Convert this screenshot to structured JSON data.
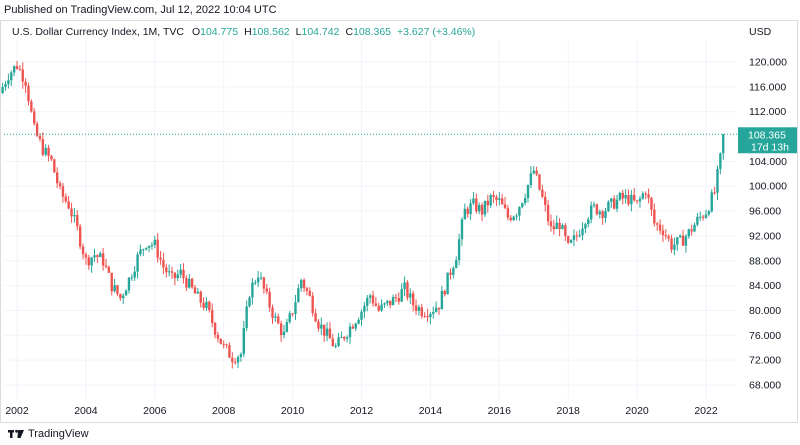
{
  "header": {
    "published": "Published on TradingView.com, Jul 12, 2022 10:04 UTC"
  },
  "legend": {
    "symbol": "U.S. Dollar Currency Index, 1M, TVC",
    "o_label": "O",
    "o_value": "104.775",
    "h_label": "H",
    "h_value": "108.562",
    "l_label": "L",
    "l_value": "104.742",
    "c_label": "C",
    "c_value": "108.365",
    "change": "+3.627 (+3.46%)"
  },
  "price_label": {
    "value": "108.365",
    "countdown": "17d 13h"
  },
  "currency": "USD",
  "footer": {
    "brand": "TradingView"
  },
  "colors": {
    "up": "#26a69a",
    "down": "#ef5350",
    "last_price": "#26a69a",
    "grid": "#f0f3fa"
  },
  "icons": {
    "logo": "tradingview-logo-icon"
  },
  "chart_data": {
    "type": "candlestick-monthly",
    "y_ticks": [
      "68.000",
      "72.000",
      "76.000",
      "80.000",
      "84.000",
      "88.000",
      "92.000",
      "96.000",
      "100.000",
      "104.000",
      "112.000",
      "116.000",
      "120.000"
    ],
    "x_ticks": [
      "2002",
      "2004",
      "2006",
      "2008",
      "2010",
      "2012",
      "2014",
      "2016",
      "2018",
      "2020",
      "2022"
    ],
    "ylim": [
      65.5,
      124
    ],
    "last_price": 108.365,
    "closes": [
      [
        2001.5,
        115.0
      ],
      [
        2001.75,
        118.0
      ],
      [
        2002.0,
        119.5
      ],
      [
        2002.25,
        117.0
      ],
      [
        2002.5,
        109.0
      ],
      [
        2002.75,
        106.0
      ],
      [
        2003.0,
        104.0
      ],
      [
        2003.25,
        99.0
      ],
      [
        2003.5,
        97.0
      ],
      [
        2003.75,
        93.0
      ],
      [
        2004.0,
        88.0
      ],
      [
        2004.25,
        89.0
      ],
      [
        2004.5,
        88.0
      ],
      [
        2004.75,
        84.0
      ],
      [
        2005.0,
        82.0
      ],
      [
        2005.25,
        85.0
      ],
      [
        2005.5,
        88.5
      ],
      [
        2005.75,
        91.0
      ],
      [
        2006.0,
        90.5
      ],
      [
        2006.25,
        87.0
      ],
      [
        2006.5,
        85.0
      ],
      [
        2006.75,
        86.0
      ],
      [
        2007.0,
        84.0
      ],
      [
        2007.25,
        82.0
      ],
      [
        2007.5,
        80.5
      ],
      [
        2007.75,
        77.0
      ],
      [
        2008.0,
        74.0
      ],
      [
        2008.25,
        72.5
      ],
      [
        2008.5,
        73.0
      ],
      [
        2008.75,
        83.0
      ],
      [
        2009.0,
        86.0
      ],
      [
        2009.25,
        82.0
      ],
      [
        2009.5,
        78.5
      ],
      [
        2009.75,
        76.0
      ],
      [
        2010.0,
        80.0
      ],
      [
        2010.25,
        85.0
      ],
      [
        2010.5,
        82.0
      ],
      [
        2010.75,
        78.0
      ],
      [
        2011.0,
        76.0
      ],
      [
        2011.25,
        74.0
      ],
      [
        2011.5,
        76.0
      ],
      [
        2011.75,
        78.0
      ],
      [
        2012.0,
        80.0
      ],
      [
        2012.25,
        82.5
      ],
      [
        2012.5,
        80.0
      ],
      [
        2012.75,
        81.0
      ],
      [
        2013.0,
        82.0
      ],
      [
        2013.25,
        83.5
      ],
      [
        2013.5,
        81.0
      ],
      [
        2013.75,
        80.0
      ],
      [
        2014.0,
        80.0
      ],
      [
        2014.25,
        81.0
      ],
      [
        2014.5,
        85.0
      ],
      [
        2014.75,
        89.0
      ],
      [
        2015.0,
        96.0
      ],
      [
        2015.25,
        97.0
      ],
      [
        2015.5,
        96.0
      ],
      [
        2015.75,
        98.0
      ],
      [
        2016.0,
        97.5
      ],
      [
        2016.25,
        95.0
      ],
      [
        2016.5,
        96.0
      ],
      [
        2016.75,
        99.0
      ],
      [
        2017.0,
        102.5
      ],
      [
        2017.25,
        98.0
      ],
      [
        2017.5,
        93.0
      ],
      [
        2017.75,
        94.0
      ],
      [
        2018.0,
        90.0
      ],
      [
        2018.25,
        92.0
      ],
      [
        2018.5,
        95.0
      ],
      [
        2018.75,
        96.5
      ],
      [
        2019.0,
        96.0
      ],
      [
        2019.25,
        97.0
      ],
      [
        2019.5,
        98.0
      ],
      [
        2019.75,
        98.0
      ],
      [
        2020.0,
        97.0
      ],
      [
        2020.25,
        99.5
      ],
      [
        2020.5,
        94.0
      ],
      [
        2020.75,
        93.0
      ],
      [
        2021.0,
        90.5
      ],
      [
        2021.25,
        91.0
      ],
      [
        2021.5,
        92.5
      ],
      [
        2021.75,
        94.5
      ],
      [
        2022.0,
        96.0
      ],
      [
        2022.25,
        99.0
      ],
      [
        2022.42,
        104.5
      ],
      [
        2022.53,
        108.365
      ]
    ]
  }
}
